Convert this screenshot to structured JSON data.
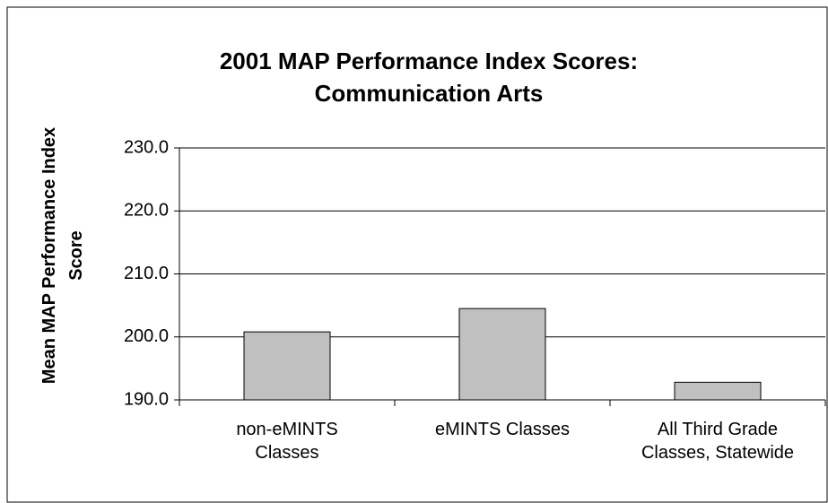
{
  "chart_data": {
    "type": "bar",
    "title": "2001 MAP Performance Index Scores: Communication Arts",
    "y_label": "Mean MAP Performance Index Score",
    "categories": [
      "non-eMINTS Classes",
      "eMINTS Classes",
      "All Third Grade Classes, Statewide"
    ],
    "values": [
      200.8,
      204.5,
      192.8
    ],
    "color": "#c0c0c0",
    "ylim": [
      190,
      230
    ],
    "yticks": [
      {
        "value": 190,
        "label": "190.0"
      },
      {
        "value": 200,
        "label": "200.0"
      },
      {
        "value": 210,
        "label": "210.0"
      },
      {
        "value": 220,
        "label": "220.0"
      },
      {
        "value": 230,
        "label": "230.0"
      }
    ],
    "grid": true
  }
}
